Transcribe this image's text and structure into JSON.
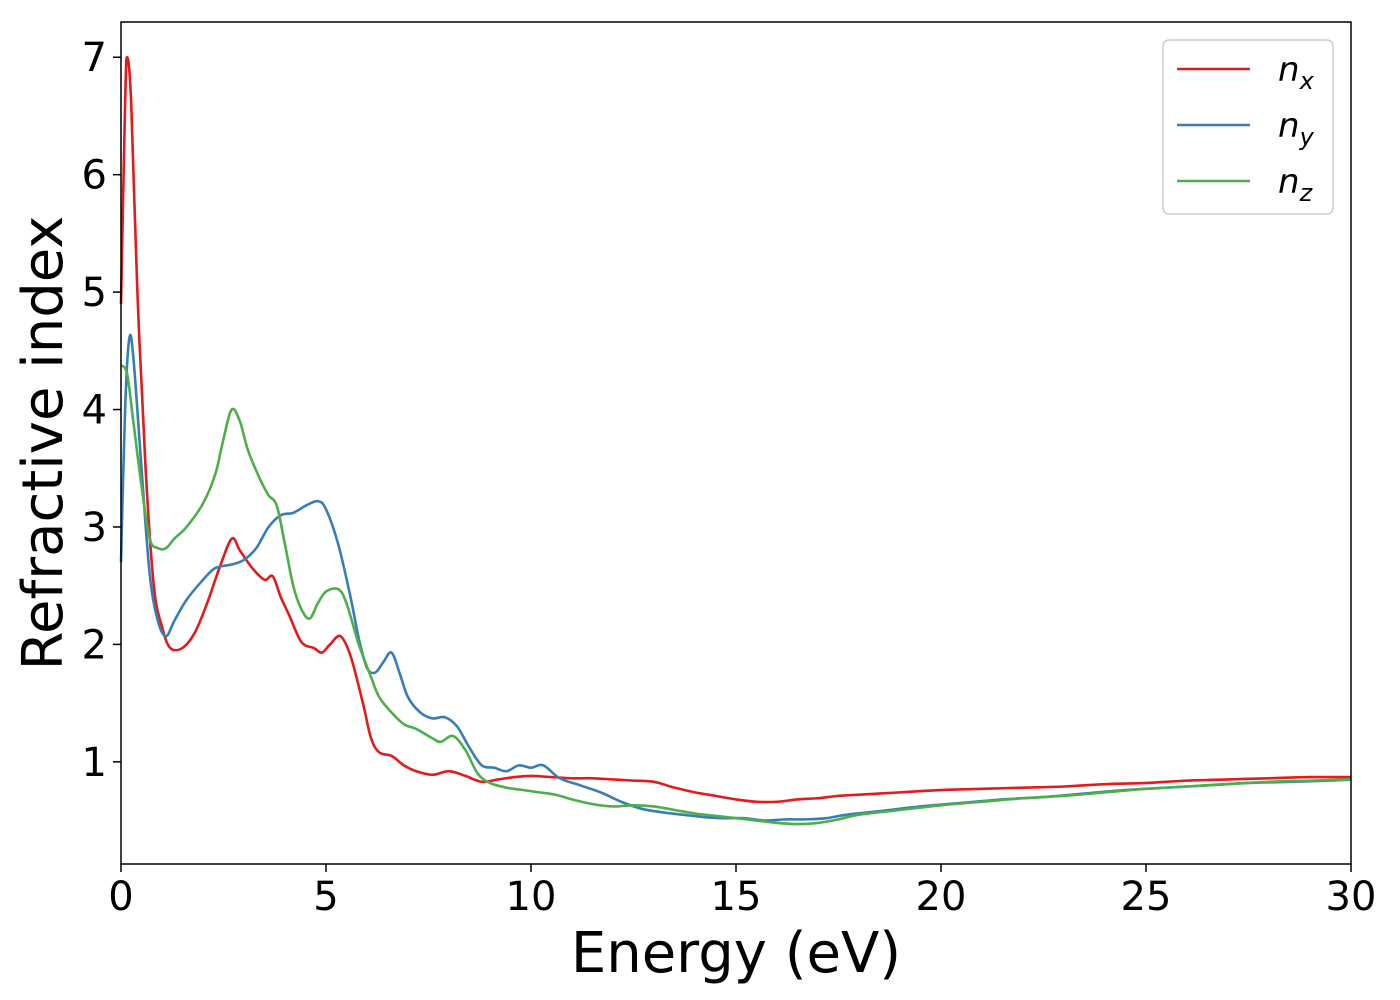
{
  "chart_data": {
    "type": "line",
    "title": "",
    "xlabel": "Energy (eV)",
    "ylabel": "Refractive index",
    "xlim": [
      0,
      30
    ],
    "ylim": [
      0.13,
      7.3
    ],
    "xticks": [
      0,
      5,
      10,
      15,
      20,
      25,
      30
    ],
    "yticks": [
      1,
      2,
      3,
      4,
      5,
      6,
      7
    ],
    "grid": false,
    "legend_position": "top-right",
    "series": [
      {
        "name": "n",
        "subscript": "x",
        "color": "#e41a1c",
        "points": [
          [
            0,
            4.9
          ],
          [
            0.1,
            6.6
          ],
          [
            0.15,
            7.0
          ],
          [
            0.25,
            6.6
          ],
          [
            0.4,
            5.0
          ],
          [
            0.6,
            3.5
          ],
          [
            0.8,
            2.5
          ],
          [
            1.0,
            2.15
          ],
          [
            1.2,
            1.97
          ],
          [
            1.5,
            1.97
          ],
          [
            1.8,
            2.1
          ],
          [
            2.1,
            2.35
          ],
          [
            2.4,
            2.65
          ],
          [
            2.7,
            2.9
          ],
          [
            2.9,
            2.8
          ],
          [
            3.2,
            2.65
          ],
          [
            3.5,
            2.55
          ],
          [
            3.7,
            2.58
          ],
          [
            3.9,
            2.4
          ],
          [
            4.1,
            2.25
          ],
          [
            4.4,
            2.02
          ],
          [
            4.7,
            1.97
          ],
          [
            4.9,
            1.93
          ],
          [
            5.1,
            2.0
          ],
          [
            5.35,
            2.07
          ],
          [
            5.6,
            1.9
          ],
          [
            5.9,
            1.5
          ],
          [
            6.1,
            1.2
          ],
          [
            6.3,
            1.08
          ],
          [
            6.6,
            1.05
          ],
          [
            6.9,
            0.97
          ],
          [
            7.2,
            0.92
          ],
          [
            7.6,
            0.89
          ],
          [
            8.0,
            0.92
          ],
          [
            8.4,
            0.88
          ],
          [
            8.8,
            0.83
          ],
          [
            9.2,
            0.85
          ],
          [
            9.6,
            0.87
          ],
          [
            10.0,
            0.88
          ],
          [
            10.5,
            0.87
          ],
          [
            11.0,
            0.86
          ],
          [
            11.5,
            0.86
          ],
          [
            12.0,
            0.85
          ],
          [
            12.5,
            0.84
          ],
          [
            13.0,
            0.83
          ],
          [
            13.5,
            0.78
          ],
          [
            14.0,
            0.74
          ],
          [
            14.5,
            0.71
          ],
          [
            15.0,
            0.68
          ],
          [
            15.5,
            0.66
          ],
          [
            16.0,
            0.66
          ],
          [
            16.5,
            0.68
          ],
          [
            17.0,
            0.69
          ],
          [
            17.5,
            0.71
          ],
          [
            18.0,
            0.72
          ],
          [
            19.0,
            0.74
          ],
          [
            20.0,
            0.76
          ],
          [
            21.0,
            0.77
          ],
          [
            22.0,
            0.78
          ],
          [
            23.0,
            0.79
          ],
          [
            24.0,
            0.81
          ],
          [
            25.0,
            0.82
          ],
          [
            26.0,
            0.84
          ],
          [
            27.0,
            0.85
          ],
          [
            28.0,
            0.86
          ],
          [
            29.0,
            0.87
          ],
          [
            30.0,
            0.87
          ]
        ]
      },
      {
        "name": "n",
        "subscript": "y",
        "color": "#377eb8",
        "points": [
          [
            0,
            2.7
          ],
          [
            0.1,
            4.0
          ],
          [
            0.2,
            4.6
          ],
          [
            0.3,
            4.45
          ],
          [
            0.5,
            3.5
          ],
          [
            0.7,
            2.6
          ],
          [
            0.9,
            2.2
          ],
          [
            1.1,
            2.07
          ],
          [
            1.3,
            2.2
          ],
          [
            1.6,
            2.38
          ],
          [
            2.0,
            2.55
          ],
          [
            2.3,
            2.65
          ],
          [
            2.7,
            2.68
          ],
          [
            3.0,
            2.72
          ],
          [
            3.3,
            2.82
          ],
          [
            3.6,
            3.0
          ],
          [
            3.9,
            3.1
          ],
          [
            4.2,
            3.12
          ],
          [
            4.5,
            3.18
          ],
          [
            4.8,
            3.22
          ],
          [
            5.0,
            3.15
          ],
          [
            5.3,
            2.85
          ],
          [
            5.6,
            2.4
          ],
          [
            5.8,
            2.05
          ],
          [
            6.0,
            1.8
          ],
          [
            6.2,
            1.76
          ],
          [
            6.4,
            1.85
          ],
          [
            6.6,
            1.93
          ],
          [
            6.8,
            1.75
          ],
          [
            7.0,
            1.55
          ],
          [
            7.3,
            1.42
          ],
          [
            7.6,
            1.37
          ],
          [
            7.9,
            1.38
          ],
          [
            8.2,
            1.3
          ],
          [
            8.5,
            1.12
          ],
          [
            8.8,
            0.97
          ],
          [
            9.1,
            0.95
          ],
          [
            9.4,
            0.92
          ],
          [
            9.7,
            0.97
          ],
          [
            10.0,
            0.95
          ],
          [
            10.3,
            0.97
          ],
          [
            10.7,
            0.86
          ],
          [
            11.2,
            0.8
          ],
          [
            11.7,
            0.74
          ],
          [
            12.2,
            0.66
          ],
          [
            12.7,
            0.6
          ],
          [
            13.2,
            0.57
          ],
          [
            13.7,
            0.55
          ],
          [
            14.2,
            0.53
          ],
          [
            14.7,
            0.52
          ],
          [
            15.2,
            0.52
          ],
          [
            15.7,
            0.5
          ],
          [
            16.2,
            0.51
          ],
          [
            16.7,
            0.51
          ],
          [
            17.2,
            0.52
          ],
          [
            17.7,
            0.55
          ],
          [
            18.5,
            0.58
          ],
          [
            19.5,
            0.62
          ],
          [
            20.5,
            0.65
          ],
          [
            21.5,
            0.68
          ],
          [
            22.5,
            0.7
          ],
          [
            23.5,
            0.73
          ],
          [
            24.5,
            0.76
          ],
          [
            25.5,
            0.78
          ],
          [
            26.5,
            0.8
          ],
          [
            27.5,
            0.82
          ],
          [
            28.5,
            0.83
          ],
          [
            29.5,
            0.84
          ],
          [
            30.0,
            0.85
          ]
        ]
      },
      {
        "name": "n",
        "subscript": "z",
        "color": "#4daf4a",
        "points": [
          [
            0,
            4.38
          ],
          [
            0.15,
            4.3
          ],
          [
            0.3,
            3.9
          ],
          [
            0.5,
            3.35
          ],
          [
            0.7,
            2.9
          ],
          [
            0.9,
            2.82
          ],
          [
            1.1,
            2.82
          ],
          [
            1.3,
            2.9
          ],
          [
            1.6,
            3.0
          ],
          [
            2.0,
            3.2
          ],
          [
            2.3,
            3.45
          ],
          [
            2.5,
            3.75
          ],
          [
            2.7,
            4.0
          ],
          [
            2.9,
            3.9
          ],
          [
            3.1,
            3.65
          ],
          [
            3.4,
            3.4
          ],
          [
            3.6,
            3.27
          ],
          [
            3.8,
            3.18
          ],
          [
            4.0,
            2.85
          ],
          [
            4.2,
            2.5
          ],
          [
            4.4,
            2.3
          ],
          [
            4.6,
            2.22
          ],
          [
            4.8,
            2.35
          ],
          [
            5.0,
            2.45
          ],
          [
            5.3,
            2.47
          ],
          [
            5.5,
            2.35
          ],
          [
            5.8,
            2.0
          ],
          [
            6.1,
            1.72
          ],
          [
            6.3,
            1.55
          ],
          [
            6.6,
            1.42
          ],
          [
            6.9,
            1.32
          ],
          [
            7.2,
            1.28
          ],
          [
            7.6,
            1.2
          ],
          [
            7.8,
            1.17
          ],
          [
            8.1,
            1.22
          ],
          [
            8.4,
            1.1
          ],
          [
            8.7,
            0.9
          ],
          [
            9.0,
            0.82
          ],
          [
            9.4,
            0.78
          ],
          [
            9.8,
            0.76
          ],
          [
            10.2,
            0.74
          ],
          [
            10.6,
            0.72
          ],
          [
            11.0,
            0.68
          ],
          [
            11.5,
            0.64
          ],
          [
            12.0,
            0.62
          ],
          [
            12.5,
            0.63
          ],
          [
            13.0,
            0.62
          ],
          [
            13.5,
            0.59
          ],
          [
            14.0,
            0.56
          ],
          [
            14.5,
            0.54
          ],
          [
            15.0,
            0.52
          ],
          [
            15.5,
            0.5
          ],
          [
            16.0,
            0.48
          ],
          [
            16.5,
            0.47
          ],
          [
            17.0,
            0.48
          ],
          [
            17.5,
            0.51
          ],
          [
            18.0,
            0.55
          ],
          [
            19.0,
            0.59
          ],
          [
            20.0,
            0.63
          ],
          [
            21.0,
            0.66
          ],
          [
            22.0,
            0.69
          ],
          [
            23.0,
            0.71
          ],
          [
            24.0,
            0.74
          ],
          [
            25.0,
            0.77
          ],
          [
            26.0,
            0.79
          ],
          [
            27.0,
            0.81
          ],
          [
            28.0,
            0.83
          ],
          [
            29.0,
            0.84
          ],
          [
            30.0,
            0.85
          ]
        ]
      }
    ]
  }
}
